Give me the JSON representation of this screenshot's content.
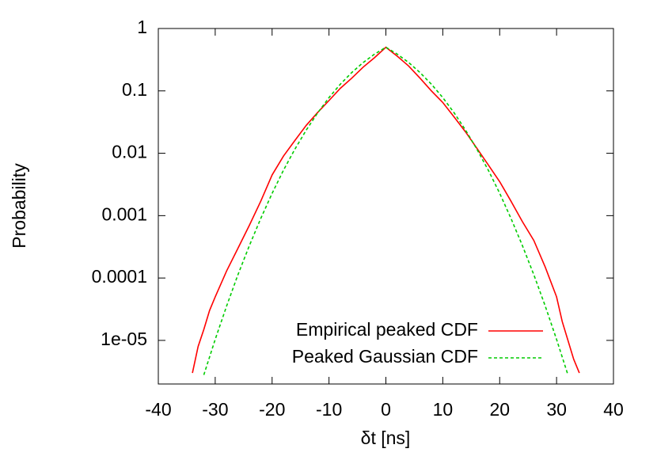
{
  "chart_data": {
    "type": "line",
    "xlabel": "δt [ns]",
    "ylabel": "Probability",
    "xlim": [
      -40,
      40
    ],
    "xticks": [
      -40,
      -30,
      -20,
      -10,
      0,
      10,
      20,
      30,
      40
    ],
    "ylim": [
      2e-06,
      1
    ],
    "log_y": true,
    "yticks": [
      1,
      0.1,
      0.01,
      0.001,
      0.0001,
      {
        "value": 1e-05,
        "label": "1e-05"
      }
    ],
    "legend": "lower right",
    "series": [
      {
        "name": "Empirical peaked CDF",
        "color": "#ff0000",
        "dash": false,
        "x": [
          -34,
          -33,
          -32,
          -31,
          -30,
          -28,
          -26,
          -24,
          -22,
          -20,
          -18,
          -16,
          -14,
          -12,
          -10,
          -8,
          -6,
          -4,
          -2,
          0,
          2,
          4,
          6,
          8,
          10,
          12,
          14,
          16,
          18,
          20,
          22,
          24,
          26,
          28,
          30,
          31,
          32,
          33,
          34
        ],
        "values": [
          3e-06,
          8e-06,
          1.5e-05,
          3e-05,
          5e-05,
          0.00013,
          0.0003,
          0.0007,
          0.0017,
          0.0045,
          0.009,
          0.016,
          0.028,
          0.045,
          0.07,
          0.11,
          0.16,
          0.24,
          0.34,
          0.5,
          0.36,
          0.25,
          0.16,
          0.1,
          0.065,
          0.038,
          0.022,
          0.012,
          0.0065,
          0.0035,
          0.0017,
          0.0008,
          0.0004,
          0.00015,
          5e-05,
          2e-05,
          1e-05,
          5e-06,
          3e-06
        ]
      },
      {
        "name": "Peaked Gaussian CDF",
        "color": "#00cc00",
        "dash": true,
        "x": [
          -32,
          -30,
          -28,
          -26,
          -24,
          -22,
          -20,
          -18,
          -16,
          -14,
          -12,
          -10,
          -8,
          -6,
          -4,
          -2,
          0,
          2,
          4,
          6,
          8,
          10,
          12,
          14,
          16,
          18,
          20,
          22,
          24,
          26,
          28,
          30,
          32
        ],
        "values": [
          2.8e-06,
          1.04e-05,
          3.56e-05,
          0.000113,
          0.00033,
          0.0009,
          0.00228,
          0.00534,
          0.0116,
          0.0235,
          0.0444,
          0.078,
          0.128,
          0.197,
          0.285,
          0.388,
          0.5,
          0.388,
          0.285,
          0.197,
          0.128,
          0.078,
          0.0444,
          0.0235,
          0.0116,
          0.00534,
          0.00228,
          0.0009,
          0.00033,
          0.000113,
          3.56e-05,
          1.04e-05,
          2.8e-06
        ]
      }
    ]
  }
}
